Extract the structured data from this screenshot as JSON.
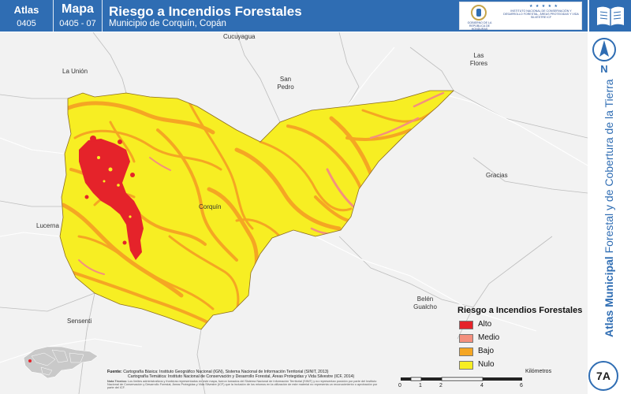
{
  "header": {
    "atlas_label": "Atlas",
    "atlas_number": "0405",
    "map_label": "Mapa",
    "map_number": "0405 - 07",
    "title": "Riesgo a Incendios Forestales",
    "subtitle": "Municipio de Corquín, Copán",
    "gov_logo_text": "GOBIERNO DE LA REPÚBLICA DE HONDURAS",
    "inst_logo_text": "Instituto Nacional de Conservación y Desarrollo Forestal, Áreas Protegidas y Vida Silvestre ICF"
  },
  "map": {
    "places": {
      "cucuyagua": "Cucuyagua",
      "la_union": "La Unión",
      "san_pedro": "San Pedro",
      "las_flores": "Las Flores",
      "gracias": "Gracias",
      "corquin": "Corquín",
      "lucerna": "Lucerna",
      "belen_gualcho": "Belén Gualcho",
      "sensenti": "Sensenti"
    },
    "north_letter": "N"
  },
  "legend": {
    "title": "Riesgo a Incendios Forestales",
    "items": [
      {
        "label": "Alto",
        "color": "#e5232a"
      },
      {
        "label": "Medio",
        "color": "#f4907e"
      },
      {
        "label": "Bajo",
        "color": "#f5a623"
      },
      {
        "label": "Nulo",
        "color": "#f7ee23"
      }
    ]
  },
  "sidebar": {
    "title_bold": "Atlas Municipal",
    "title_rest": "Forestal y de Cobertura de la Tierra",
    "badge": "7A"
  },
  "sources": {
    "label": "Fuente:",
    "line1": "Cartografía Básica: Instituto Geográfico Nacional (IGN), Sistema Nacional de Información Territorial (SINIT, 2013)",
    "line2": "Cartografía Temática: Instituto Nacional de Conservación y Desarrollo Forestal, Áreas Protegidas y Vida Silvestre (ICF, 2014)",
    "note_label": "Nota Técnica:",
    "note": "Los límites administrativos y fronteras representados en este mapa, fueron tomados del Sistema Nacional de Información Territorial (SINIT) y no representan posición por parte del Instituto Nacional de Conservación y Desarrollo Forestal, Áreas Protegidas y Vida Silvestre (ICF) que la inclusión de los mismos en la utilización de este material no representa un reconocimiento o aprobación por parte del ICF."
  },
  "scale": {
    "unit": "Kilómetros",
    "ticks": [
      "0",
      "1",
      "2",
      "4",
      "6"
    ]
  },
  "colors": {
    "header_blue": "#2f6db3",
    "high": "#e5232a",
    "medium": "#f4907e",
    "low": "#f5a623",
    "none": "#f7ee23",
    "background": "#f2f2f2"
  }
}
